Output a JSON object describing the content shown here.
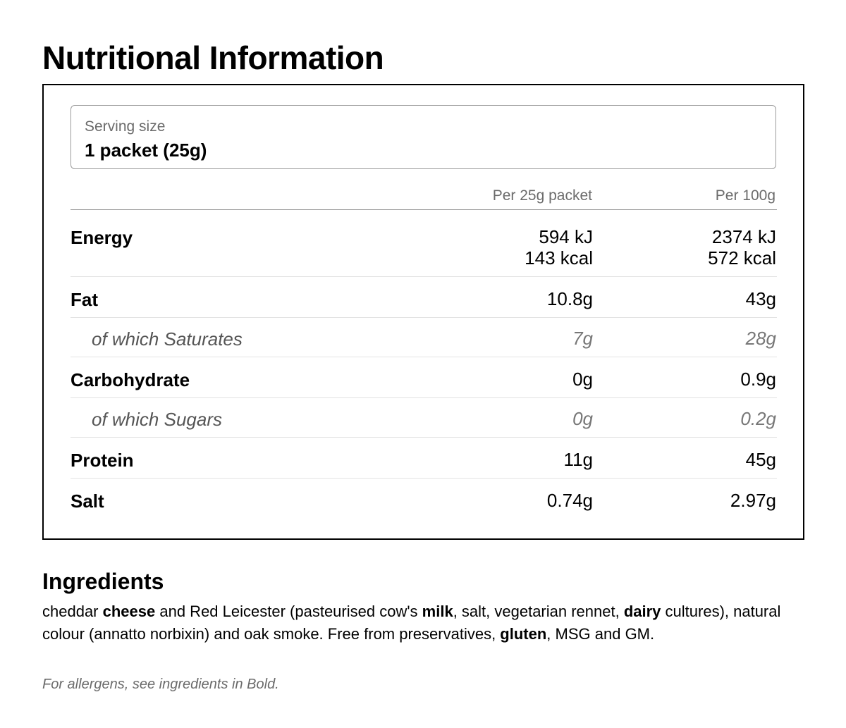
{
  "title": "Nutritional Information",
  "serving": {
    "label": "Serving size",
    "value": "1 packet (25g)"
  },
  "columns": {
    "per_packet": "Per 25g packet",
    "per_100g": "Per 100g"
  },
  "rows": [
    {
      "name": "Energy",
      "sub": false,
      "per_packet": [
        "594 kJ",
        "143 kcal"
      ],
      "per_100g": [
        "2374 kJ",
        "572 kcal"
      ]
    },
    {
      "name": "Fat",
      "sub": false,
      "per_packet": [
        "10.8g"
      ],
      "per_100g": [
        "43g"
      ]
    },
    {
      "name": "of which Saturates",
      "sub": true,
      "per_packet": [
        "7g"
      ],
      "per_100g": [
        "28g"
      ]
    },
    {
      "name": "Carbohydrate",
      "sub": false,
      "per_packet": [
        "0g"
      ],
      "per_100g": [
        "0.9g"
      ]
    },
    {
      "name": "of which Sugars",
      "sub": true,
      "per_packet": [
        "0g"
      ],
      "per_100g": [
        "0.2g"
      ]
    },
    {
      "name": "Protein",
      "sub": false,
      "per_packet": [
        "11g"
      ],
      "per_100g": [
        "45g"
      ]
    },
    {
      "name": "Salt",
      "sub": false,
      "per_packet": [
        "0.74g"
      ],
      "per_100g": [
        "2.97g"
      ]
    }
  ],
  "ingredients": {
    "title": "Ingredients",
    "segments": [
      {
        "text": "cheddar ",
        "bold": false
      },
      {
        "text": "cheese",
        "bold": true
      },
      {
        "text": " and Red Leicester (pasteurised cow's ",
        "bold": false
      },
      {
        "text": "milk",
        "bold": true
      },
      {
        "text": ", salt, vegetarian rennet, ",
        "bold": false
      },
      {
        "text": "dairy",
        "bold": true
      },
      {
        "text": " cultures), natural colour (annatto norbixin) and oak smoke. Free from preservatives, ",
        "bold": false
      },
      {
        "text": "gluten",
        "bold": true
      },
      {
        "text": ", MSG and GM.",
        "bold": false
      }
    ],
    "allergen_note": "For allergens, see ingredients in Bold."
  }
}
